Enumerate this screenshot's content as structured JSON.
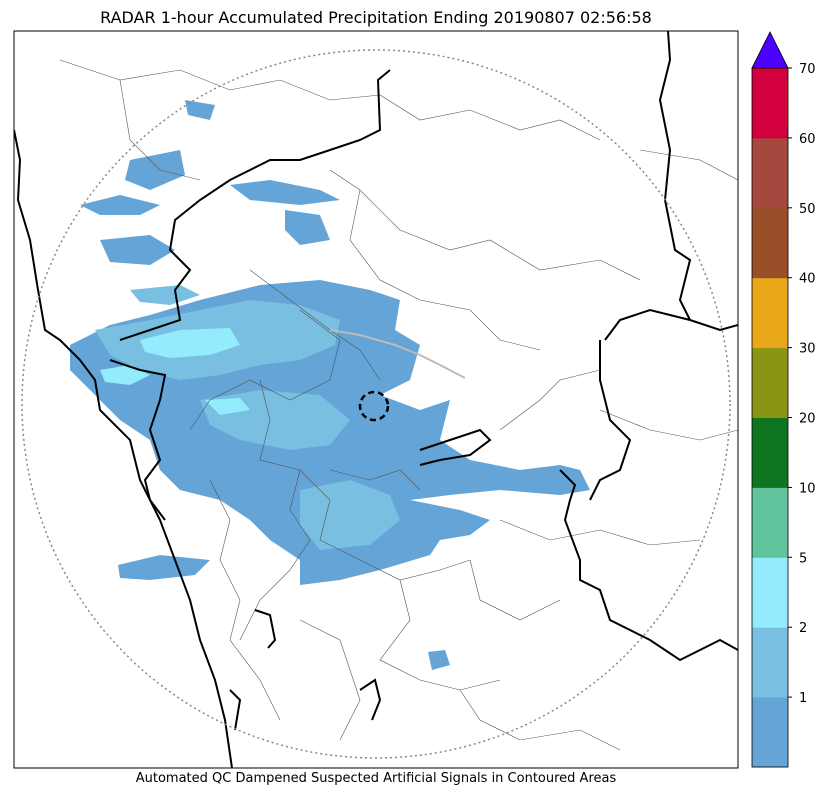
{
  "title": "RADAR 1-hour Accumulated Precipitation Ending 20190807 02:56:58",
  "footer": "Automated QC Dampened Suspected Artificial Signals in Contoured Areas",
  "colorbar": {
    "levels": [
      {
        "label": "",
        "color": "#64a4d6"
      },
      {
        "label": "1",
        "color": "#78bfe2"
      },
      {
        "label": "2",
        "color": "#92ecfb"
      },
      {
        "label": "5",
        "color": "#5fc39b"
      },
      {
        "label": "10",
        "color": "#0e7520"
      },
      {
        "label": "20",
        "color": "#8a9516"
      },
      {
        "label": "30",
        "color": "#e8a81a"
      },
      {
        "label": "40",
        "color": "#9a4f29"
      },
      {
        "label": "50",
        "color": "#a7483f"
      },
      {
        "label": "60",
        "color": "#d3003e"
      },
      {
        "label": "70",
        "color": ""
      }
    ],
    "extend_color": "#4c00ff"
  },
  "colors": {
    "rain_light": "#64a4d6",
    "rain_mid": "#78bfe2",
    "rain_heavy": "#92ecfb",
    "state_border": "#000000",
    "district_border": "#555555",
    "range_ring": "#888888",
    "qc_contour": "#bbbbbb"
  }
}
